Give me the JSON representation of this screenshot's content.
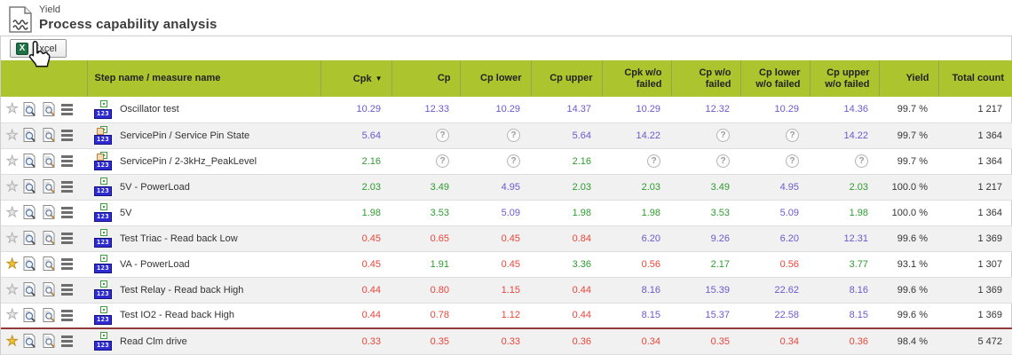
{
  "page": {
    "category": "Yield",
    "title": "Process capability analysis"
  },
  "toolbar": {
    "excel_label": "Excel"
  },
  "colors": {
    "header_green": "#acc42e",
    "value_blue": "#6a5acd",
    "value_green": "#2e9b2e",
    "value_red": "#e8463a",
    "favorite_yellow": "#f2c12e",
    "row_divider_red": "#923a3a"
  },
  "table": {
    "sort_indicator": "▼",
    "sorted_column": "Cpk",
    "headers": {
      "step": "Step name / measure name",
      "cpk": "Cpk",
      "cp": "Cp",
      "cp_lower": "Cp lower",
      "cp_upper": "Cp upper",
      "cpk_wo": "Cpk w/o failed",
      "cp_wo": "Cp w/o failed",
      "cp_lower_wo": "Cp lower w/o failed",
      "cp_upper_wo": "Cp upper w/o failed",
      "yield": "Yield",
      "total": "Total count"
    },
    "rows": [
      {
        "name": "Oscillator test",
        "favorite": false,
        "icon": "numeric",
        "values": [
          {
            "v": "10.29",
            "c": "blue"
          },
          {
            "v": "12.33",
            "c": "blue"
          },
          {
            "v": "10.29",
            "c": "blue"
          },
          {
            "v": "14.37",
            "c": "blue"
          },
          {
            "v": "10.29",
            "c": "blue"
          },
          {
            "v": "12.32",
            "c": "blue"
          },
          {
            "v": "10.29",
            "c": "blue"
          },
          {
            "v": "14.36",
            "c": "blue"
          }
        ],
        "yield": "99.7 %",
        "total": "1 217"
      },
      {
        "name": "ServicePin / Service Pin State",
        "favorite": false,
        "icon": "seq",
        "values": [
          {
            "v": "5.64",
            "c": "blue"
          },
          {
            "q": true
          },
          {
            "q": true
          },
          {
            "v": "5.64",
            "c": "blue"
          },
          {
            "v": "14.22",
            "c": "blue"
          },
          {
            "q": true
          },
          {
            "q": true
          },
          {
            "v": "14.22",
            "c": "blue"
          }
        ],
        "yield": "99.7 %",
        "total": "1 364"
      },
      {
        "name": "ServicePin / 2-3kHz_PeakLevel",
        "favorite": false,
        "icon": "seq",
        "values": [
          {
            "v": "2.16",
            "c": "green"
          },
          {
            "q": true
          },
          {
            "q": true
          },
          {
            "v": "2.16",
            "c": "green"
          },
          {
            "q": true
          },
          {
            "q": true
          },
          {
            "q": true
          },
          {
            "q": true
          }
        ],
        "yield": "99.7 %",
        "total": "1 364"
      },
      {
        "name": "5V - PowerLoad",
        "favorite": false,
        "icon": "numeric",
        "values": [
          {
            "v": "2.03",
            "c": "green"
          },
          {
            "v": "3.49",
            "c": "green"
          },
          {
            "v": "4.95",
            "c": "blue"
          },
          {
            "v": "2.03",
            "c": "green"
          },
          {
            "v": "2.03",
            "c": "green"
          },
          {
            "v": "3.49",
            "c": "green"
          },
          {
            "v": "4.95",
            "c": "blue"
          },
          {
            "v": "2.03",
            "c": "green"
          }
        ],
        "yield": "100.0 %",
        "total": "1 217"
      },
      {
        "name": "5V",
        "favorite": false,
        "icon": "numeric",
        "values": [
          {
            "v": "1.98",
            "c": "green"
          },
          {
            "v": "3.53",
            "c": "green"
          },
          {
            "v": "5.09",
            "c": "blue"
          },
          {
            "v": "1.98",
            "c": "green"
          },
          {
            "v": "1.98",
            "c": "green"
          },
          {
            "v": "3.53",
            "c": "green"
          },
          {
            "v": "5.09",
            "c": "blue"
          },
          {
            "v": "1.98",
            "c": "green"
          }
        ],
        "yield": "100.0 %",
        "total": "1 364"
      },
      {
        "name": "Test Triac - Read back Low",
        "favorite": false,
        "icon": "numeric",
        "values": [
          {
            "v": "0.45",
            "c": "red"
          },
          {
            "v": "0.65",
            "c": "red"
          },
          {
            "v": "0.45",
            "c": "red"
          },
          {
            "v": "0.84",
            "c": "red"
          },
          {
            "v": "6.20",
            "c": "blue"
          },
          {
            "v": "9.26",
            "c": "blue"
          },
          {
            "v": "6.20",
            "c": "blue"
          },
          {
            "v": "12.31",
            "c": "blue"
          }
        ],
        "yield": "99.6 %",
        "total": "1 369"
      },
      {
        "name": "VA - PowerLoad",
        "favorite": true,
        "icon": "numeric",
        "values": [
          {
            "v": "0.45",
            "c": "red"
          },
          {
            "v": "1.91",
            "c": "green"
          },
          {
            "v": "0.45",
            "c": "red"
          },
          {
            "v": "3.36",
            "c": "green"
          },
          {
            "v": "0.56",
            "c": "red"
          },
          {
            "v": "2.17",
            "c": "green"
          },
          {
            "v": "0.56",
            "c": "red"
          },
          {
            "v": "3.77",
            "c": "green"
          }
        ],
        "yield": "93.1 %",
        "total": "1 307"
      },
      {
        "name": "Test Relay - Read back High",
        "favorite": false,
        "icon": "numeric",
        "values": [
          {
            "v": "0.44",
            "c": "red"
          },
          {
            "v": "0.80",
            "c": "red"
          },
          {
            "v": "1.15",
            "c": "red"
          },
          {
            "v": "0.44",
            "c": "red"
          },
          {
            "v": "8.16",
            "c": "blue"
          },
          {
            "v": "15.39",
            "c": "blue"
          },
          {
            "v": "22.62",
            "c": "blue"
          },
          {
            "v": "8.16",
            "c": "blue"
          }
        ],
        "yield": "99.6 %",
        "total": "1 369"
      },
      {
        "name": "Test IO2 - Read back High",
        "favorite": false,
        "icon": "numeric",
        "values": [
          {
            "v": "0.44",
            "c": "red"
          },
          {
            "v": "0.78",
            "c": "red"
          },
          {
            "v": "1.12",
            "c": "red"
          },
          {
            "v": "0.44",
            "c": "red"
          },
          {
            "v": "8.15",
            "c": "blue"
          },
          {
            "v": "15.37",
            "c": "blue"
          },
          {
            "v": "22.58",
            "c": "blue"
          },
          {
            "v": "8.15",
            "c": "blue"
          }
        ],
        "yield": "99.6 %",
        "total": "1 369"
      },
      {
        "name": "Read Clm drive",
        "favorite": true,
        "icon": "numeric",
        "divider_top": true,
        "values": [
          {
            "v": "0.33",
            "c": "red"
          },
          {
            "v": "0.35",
            "c": "red"
          },
          {
            "v": "0.33",
            "c": "red"
          },
          {
            "v": "0.36",
            "c": "red"
          },
          {
            "v": "0.34",
            "c": "red"
          },
          {
            "v": "0.35",
            "c": "red"
          },
          {
            "v": "0.34",
            "c": "red"
          },
          {
            "v": "0.36",
            "c": "red"
          }
        ],
        "yield": "98.4 %",
        "total": "5 472"
      }
    ]
  }
}
